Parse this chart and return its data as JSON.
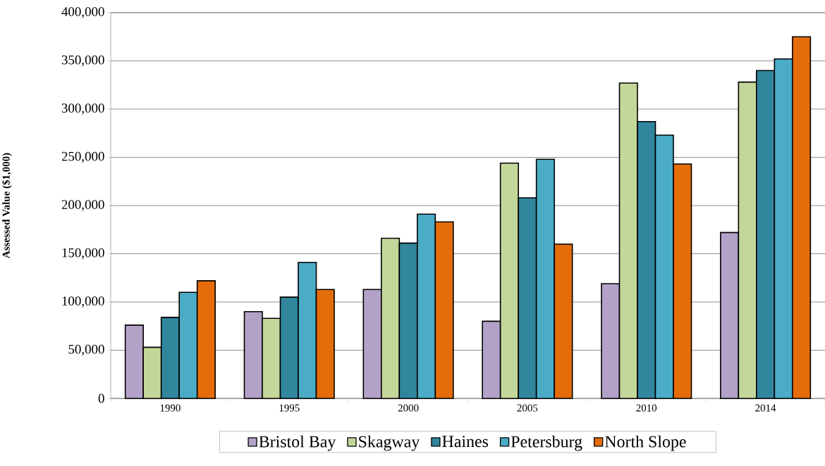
{
  "chart_data": {
    "type": "bar",
    "ylabel": "**Assessed Value ($1,000)**",
    "categories": [
      "1990",
      "1995",
      "2000",
      "2005",
      "2010",
      "2014"
    ],
    "series": [
      {
        "name": "Bristol Bay",
        "color": "#b3a2c7",
        "values": [
          76000,
          90000,
          113000,
          80000,
          119000,
          172000
        ]
      },
      {
        "name": "Skagway",
        "color": "#c4d79b",
        "values": [
          53000,
          83000,
          166000,
          244000,
          327000,
          328000
        ]
      },
      {
        "name": "Haines",
        "color": "#31859c",
        "values": [
          84000,
          105000,
          161000,
          208000,
          287000,
          340000
        ]
      },
      {
        "name": "Petersburg",
        "color": "#4bacc6",
        "values": [
          110000,
          141000,
          191000,
          248000,
          273000,
          352000
        ]
      },
      {
        "name": "North Slope",
        "color": "#e46c0a",
        "values": [
          122000,
          113000,
          183000,
          160000,
          243000,
          375000
        ]
      }
    ],
    "ylim": [
      0,
      400000
    ],
    "yticks": [
      0,
      {
        "value": 50000,
        "label": "50,000"
      },
      {
        "value": 100000,
        "label": "100,000"
      },
      {
        "value": 150000,
        "label": "150,000"
      },
      {
        "value": 200000,
        "label": "200,000"
      },
      {
        "value": 250000,
        "label": "250,000"
      },
      {
        "value": 300000,
        "label": "300,000"
      },
      {
        "value": 350000,
        "label": "350,000"
      },
      {
        "value": 400000,
        "label": "400,000"
      }
    ],
    "grid": "y",
    "legend": "bottom"
  }
}
